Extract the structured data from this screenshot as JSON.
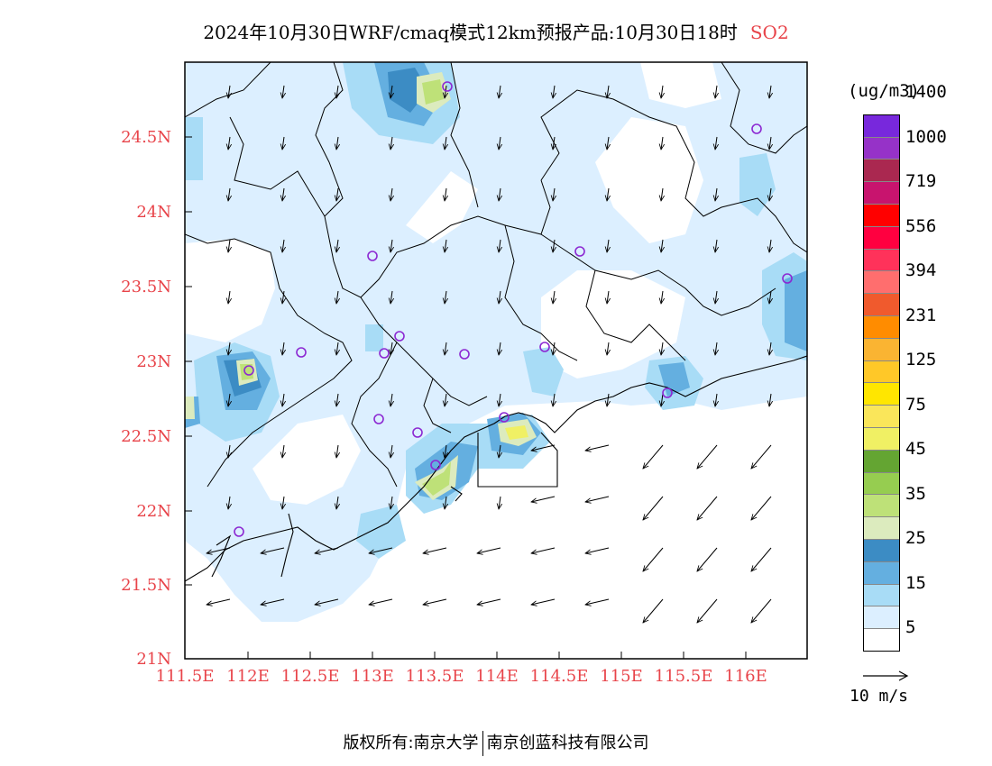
{
  "title": {
    "main": "2024年10月30日WRF/cmaq模式12km预报产品:10月30日18时",
    "species": "SO2"
  },
  "axes": {
    "lat_labels": [
      "24.5N",
      "24N",
      "23.5N",
      "23N",
      "22.5N",
      "22N",
      "21.5N",
      "21N"
    ],
    "lon_labels": [
      "111.5E",
      "112E",
      "112.5E",
      "113E",
      "113.5E",
      "114E",
      "114.5E",
      "115E",
      "115.5E",
      "116E"
    ]
  },
  "legend": {
    "unit": "(ug/m3)",
    "labels": [
      "5",
      "15",
      "25",
      "35",
      "45",
      "75",
      "125",
      "231",
      "394",
      "556",
      "719",
      "1000",
      "1400"
    ],
    "colors": [
      "#ffffff",
      "#dcefff",
      "#a8dcf6",
      "#64afe0",
      "#3c8cc4",
      "#dcebbe",
      "#bee178",
      "#96cd50",
      "#64a532",
      "#f0f064",
      "#fae65a",
      "#ffe600",
      "#ffc828",
      "#fab432",
      "#ff8c00",
      "#f05a2d",
      "#ff6e6e",
      "#ff325a",
      "#ff0040",
      "#ff0000",
      "#c8146e",
      "#aa2850",
      "#9632c8",
      "#7828dc"
    ],
    "ref_vector_label": "10 m/s"
  },
  "footer": {
    "left": "版权所有:南京大学",
    "right": "南京创蓝科技有限公司"
  }
}
